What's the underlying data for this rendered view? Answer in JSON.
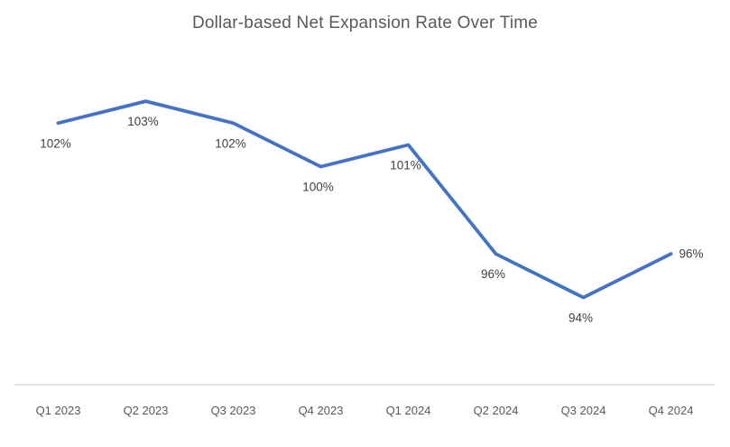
{
  "chart_data": {
    "type": "line",
    "title": "Dollar-based Net Expansion Rate Over Time",
    "categories": [
      "Q1 2023",
      "Q2 2023",
      "Q3 2023",
      "Q4 2023",
      "Q1 2024",
      "Q2 2024",
      "Q3 2024",
      "Q4 2024"
    ],
    "series": [
      {
        "name": "Dollar-based Net Expansion Rate",
        "values": [
          102,
          103,
          102,
          100,
          101,
          96,
          94,
          96
        ]
      }
    ],
    "data_labels": [
      "102%",
      "103%",
      "102%",
      "100%",
      "101%",
      "96%",
      "94%",
      "96%"
    ],
    "label_positions": [
      "below",
      "below",
      "below",
      "below",
      "below",
      "below",
      "below",
      "right"
    ],
    "xlabel": "",
    "ylabel": "",
    "ylim": [
      90,
      104
    ],
    "grid": false,
    "legend_position": "none",
    "y_axis_visible": false,
    "colors": {
      "line": "#4472C4",
      "title": "#595959",
      "data_label": "#404040",
      "tick_label": "#595959",
      "axis_line": "#D9D9D9",
      "background": "#FFFFFF"
    }
  }
}
